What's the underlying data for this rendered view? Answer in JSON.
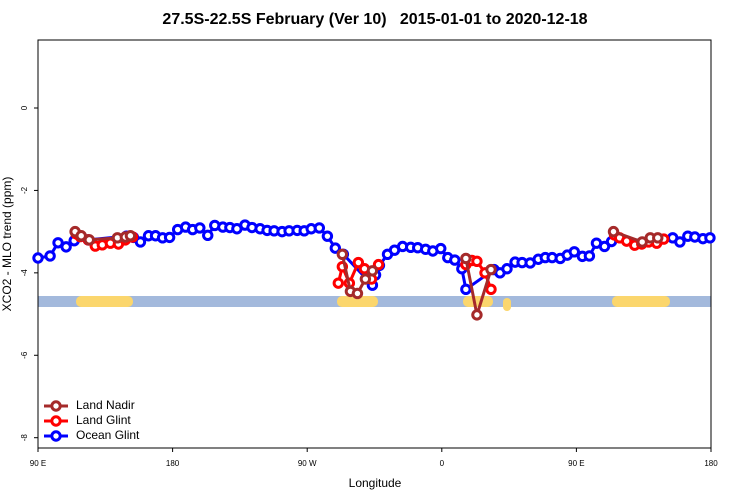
{
  "chart_data": {
    "type": "line",
    "title": "27.5S-22.5S February (Ver 10)   2015-01-01 to 2020-12-18",
    "x_label": "Longitude",
    "y_label": "XCO2 - MLO trend (ppm)",
    "xlim": [
      90,
      540
    ],
    "ylim": [
      -8.25,
      1.65
    ],
    "xticks": [
      {
        "value": 90,
        "label": "90 E"
      },
      180,
      {
        "value": 270,
        "label": "90 W"
      },
      {
        "value": 360,
        "label": "0"
      },
      {
        "value": 450,
        "label": "90 E"
      },
      {
        "value": 540,
        "label": "180"
      }
    ],
    "yticks": [
      0,
      -2,
      -4,
      -6,
      -8
    ],
    "legend": "bottomleft",
    "series": [
      {
        "name": "Land Nadir",
        "color": "#a52a2a",
        "x": [
          114.8,
          118.9,
          124.3,
          143.1,
          148.4,
          151.8,
          null,
          293.5,
          298.9,
          303.6,
          308.9,
          313.6,
          null,
          376.1,
          383.5,
          392.9,
          null,
          474.8,
          494.0,
          499.4,
          504.4
        ],
        "values": [
          -3.0,
          -3.1,
          -3.2,
          -3.15,
          -3.13,
          -3.1,
          null,
          -3.55,
          -4.45,
          -4.5,
          -4.15,
          -3.95,
          null,
          -3.65,
          -5.02,
          -3.92,
          null,
          -3.0,
          -3.25,
          -3.15,
          -3.15
        ]
      },
      {
        "name": "Land Glint",
        "color": "#ff0000",
        "x": [
          115.5,
          118.2,
          123.6,
          128.3,
          133.0,
          138.4,
          143.8,
          148.4,
          153.2,
          null,
          290.8,
          293.5,
          298.2,
          304.2,
          308.3,
          313.0,
          317.7,
          null,
          376.1,
          380.1,
          383.5,
          388.9,
          392.9,
          null,
          475.5,
          478.9,
          483.6,
          489.0,
          493.7,
          498.3,
          503.7,
          508.4
        ],
        "values": [
          -3.05,
          -3.12,
          -3.2,
          -3.35,
          -3.32,
          -3.28,
          -3.3,
          -3.2,
          -3.13,
          null,
          -4.25,
          -3.85,
          -4.25,
          -3.75,
          -3.9,
          -4.15,
          -3.8,
          null,
          -3.8,
          -3.7,
          -3.72,
          -4.0,
          -4.4,
          null,
          -3.08,
          -3.15,
          -3.23,
          -3.33,
          -3.3,
          -3.25,
          -3.28,
          -3.18
        ]
      },
      {
        "name": "Ocean Glint",
        "color": "#0000ff",
        "x": [
          90.0,
          98.1,
          103.4,
          108.8,
          114.2,
          123.6,
          149.1,
          153.8,
          158.5,
          163.9,
          168.6,
          173.3,
          178.0,
          183.4,
          188.7,
          193.4,
          198.2,
          203.5,
          208.2,
          213.6,
          218.3,
          223.0,
          228.4,
          233.1,
          238.5,
          243.2,
          247.9,
          253.2,
          257.9,
          263.3,
          268.0,
          272.7,
          278.1,
          283.5,
          288.8,
          294.2,
          313.6,
          315.7,
          318.3,
          323.7,
          328.4,
          333.8,
          339.2,
          343.9,
          349.2,
          354.0,
          359.3,
          364.0,
          368.7,
          373.4,
          376.1,
          394.9,
          398.9,
          403.6,
          409.0,
          413.7,
          419.1,
          424.5,
          429.2,
          433.8,
          439.2,
          443.9,
          448.6,
          454.0,
          458.7,
          463.4,
          468.8,
          473.5,
          514.4,
          519.2,
          524.5,
          529.2,
          534.6,
          539.3
        ],
        "values": [
          -3.64,
          -3.59,
          -3.27,
          -3.37,
          -3.22,
          -3.2,
          -3.11,
          -3.14,
          -3.25,
          -3.1,
          -3.1,
          -3.15,
          -3.14,
          -2.95,
          -2.89,
          -2.95,
          -2.91,
          -3.09,
          -2.85,
          -2.89,
          -2.9,
          -2.93,
          -2.84,
          -2.9,
          -2.93,
          -2.97,
          -2.98,
          -3.0,
          -2.98,
          -2.97,
          -2.98,
          -2.93,
          -2.91,
          -3.11,
          -3.4,
          -3.55,
          -4.3,
          -4.05,
          -3.82,
          -3.55,
          -3.45,
          -3.36,
          -3.38,
          -3.39,
          -3.43,
          -3.47,
          -3.41,
          -3.63,
          -3.69,
          -3.9,
          -4.4,
          -3.92,
          -4.0,
          -3.9,
          -3.74,
          -3.75,
          -3.76,
          -3.67,
          -3.63,
          -3.63,
          -3.65,
          -3.57,
          -3.49,
          -3.6,
          -3.59,
          -3.28,
          -3.36,
          -3.24,
          -3.15,
          -3.25,
          -3.11,
          -3.13,
          -3.17,
          -3.15
        ]
      }
    ]
  }
}
